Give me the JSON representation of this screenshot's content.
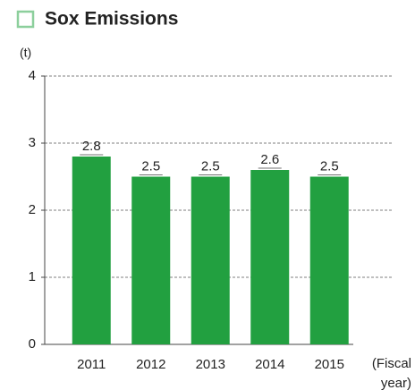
{
  "chart_data": {
    "type": "bar",
    "title": "Sox Emissions",
    "ylabel": "(t)",
    "xlabel": "(Fiscal year)",
    "categories": [
      "2011",
      "2012",
      "2013",
      "2014",
      "2015"
    ],
    "values": [
      2.8,
      2.5,
      2.5,
      2.6,
      2.5
    ],
    "color": "#22a040",
    "ylim": [
      0,
      4
    ],
    "yticks": [
      0,
      1,
      2,
      3,
      4
    ],
    "grid": true
  }
}
